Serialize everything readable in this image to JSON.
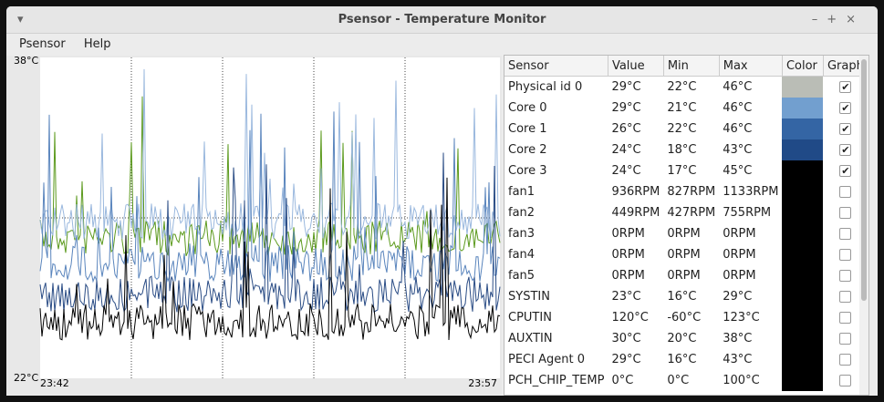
{
  "window": {
    "title": "Psensor - Temperature Monitor"
  },
  "menu": [
    "Psensor",
    "Help"
  ],
  "graph": {
    "y_max_label": "38°C",
    "y_min_label": "22°C",
    "x_start_label": "23:42",
    "x_end_label": "23:57"
  },
  "table": {
    "columns": [
      "Sensor",
      "Value",
      "Min",
      "Max",
      "Color",
      "Graph"
    ],
    "rows": [
      {
        "sensor": "Physical id 0",
        "value": "29°C",
        "min": "22°C",
        "max": "46°C",
        "color": "#babdb6",
        "graph": true
      },
      {
        "sensor": "Core 0",
        "value": "29°C",
        "min": "21°C",
        "max": "46°C",
        "color": "#729fcf",
        "graph": true
      },
      {
        "sensor": "Core 1",
        "value": "26°C",
        "min": "22°C",
        "max": "46°C",
        "color": "#3465a4",
        "graph": true
      },
      {
        "sensor": "Core 2",
        "value": "24°C",
        "min": "18°C",
        "max": "43°C",
        "color": "#204a87",
        "graph": true
      },
      {
        "sensor": "Core 3",
        "value": "24°C",
        "min": "17°C",
        "max": "45°C",
        "color": "#000000",
        "graph": true
      },
      {
        "sensor": "fan1",
        "value": "936RPM",
        "min": "827RPM",
        "max": "1133RPM",
        "color": "#000000",
        "graph": false
      },
      {
        "sensor": "fan2",
        "value": "449RPM",
        "min": "427RPM",
        "max": "755RPM",
        "color": "#000000",
        "graph": false
      },
      {
        "sensor": "fan3",
        "value": "0RPM",
        "min": "0RPM",
        "max": "0RPM",
        "color": "#000000",
        "graph": false
      },
      {
        "sensor": "fan4",
        "value": "0RPM",
        "min": "0RPM",
        "max": "0RPM",
        "color": "#000000",
        "graph": false
      },
      {
        "sensor": "fan5",
        "value": "0RPM",
        "min": "0RPM",
        "max": "0RPM",
        "color": "#000000",
        "graph": false
      },
      {
        "sensor": "SYSTIN",
        "value": "23°C",
        "min": "16°C",
        "max": "29°C",
        "color": "#000000",
        "graph": false
      },
      {
        "sensor": "CPUTIN",
        "value": "120°C",
        "min": "-60°C",
        "max": "123°C",
        "color": "#000000",
        "graph": false
      },
      {
        "sensor": "AUXTIN",
        "value": "30°C",
        "min": "20°C",
        "max": "38°C",
        "color": "#000000",
        "graph": false
      },
      {
        "sensor": "PECI Agent 0",
        "value": "29°C",
        "min": "16°C",
        "max": "43°C",
        "color": "#000000",
        "graph": false
      },
      {
        "sensor": "PCH_CHIP_TEMP",
        "value": "0°C",
        "min": "0°C",
        "max": "100°C",
        "color": "#000000",
        "graph": false
      }
    ]
  }
}
